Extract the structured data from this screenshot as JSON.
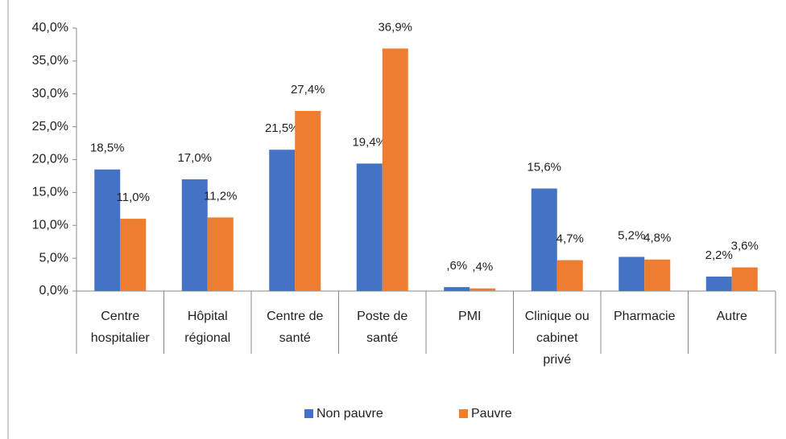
{
  "chart_data": {
    "type": "bar",
    "categories": [
      [
        "Centre",
        "hospitalier"
      ],
      [
        "Hôpital",
        "régional"
      ],
      [
        "Centre de",
        "santé"
      ],
      [
        "Poste de",
        "santé"
      ],
      [
        "PMI"
      ],
      [
        "Clinique ou",
        "cabinet",
        "privé"
      ],
      [
        "Pharmacie"
      ],
      [
        "Autre"
      ]
    ],
    "series": [
      {
        "name": "Non pauvre",
        "color": "#4472c4",
        "values": [
          18.5,
          17.0,
          21.5,
          19.4,
          0.6,
          15.6,
          5.2,
          2.2
        ],
        "value_labels": [
          "18,5%",
          "17,0%",
          "21,5%",
          "19,4%",
          ",6%",
          "15,6%",
          "5,2%",
          "2,2%"
        ]
      },
      {
        "name": "Pauvre",
        "color": "#ed7d31",
        "values": [
          11.0,
          11.2,
          27.4,
          36.9,
          0.4,
          4.7,
          4.8,
          3.6
        ],
        "value_labels": [
          "11,0%",
          "11,2%",
          "27,4%",
          "36,9%",
          ",4%",
          "4,7%",
          "4,8%",
          "3,6%"
        ]
      }
    ],
    "ylim": [
      0,
      40
    ],
    "yticks": [
      {
        "value": 0,
        "label": "0,0%"
      },
      {
        "value": 5,
        "label": "5,0%"
      },
      {
        "value": 10,
        "label": "10,0%"
      },
      {
        "value": 15,
        "label": "15,0%"
      },
      {
        "value": 20,
        "label": "20,0%"
      },
      {
        "value": 25,
        "label": "25,0%"
      },
      {
        "value": 30,
        "label": "30,0%"
      },
      {
        "value": 35,
        "label": "35,0%"
      },
      {
        "value": 40,
        "label": "40,0%"
      }
    ],
    "grid": false,
    "legend": "bottom"
  }
}
